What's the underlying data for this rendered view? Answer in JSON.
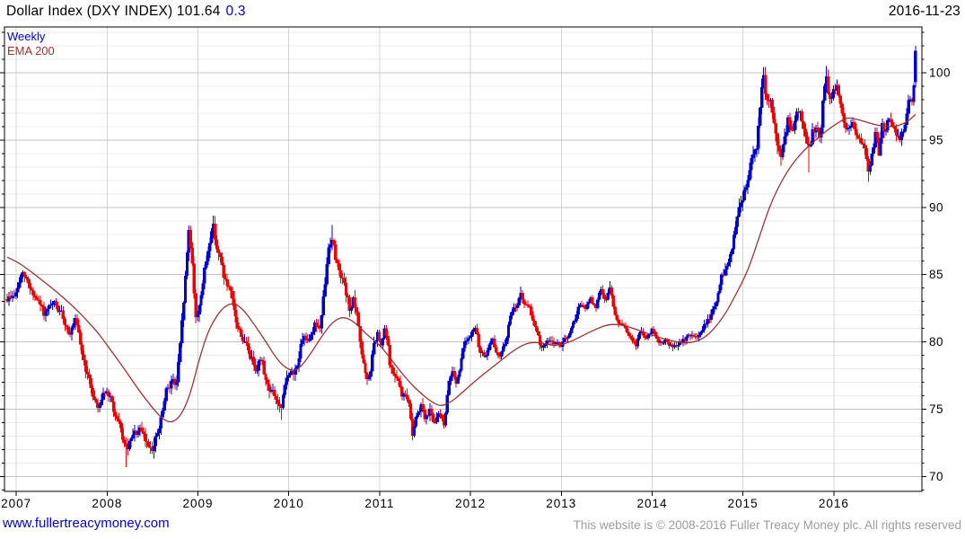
{
  "header": {
    "title_main": "Dollar Index (DXY INDEX) 101.64",
    "title_change": "0.3",
    "date": "2016-11-23"
  },
  "legend": {
    "interval_label": "Weekly",
    "overlay_label": "EMA 200"
  },
  "footer": {
    "site_link": "www.fullertreacymoney.com",
    "copyright": "This website is © 2008-2016 Fuller Treacy Money plc. All rights reserved"
  },
  "chart_data": {
    "type": "candlestick",
    "title": "Dollar Index (DXY INDEX)",
    "interval": "Weekly",
    "overlay": "EMA 200",
    "last_price": 101.64,
    "change": 0.3,
    "last_date": "2016-11-23",
    "x_ticks": [
      2007,
      2008,
      2009,
      2010,
      2011,
      2012,
      2013,
      2014,
      2015,
      2016
    ],
    "y_ticks": [
      70,
      75,
      80,
      85,
      90,
      95,
      100
    ],
    "y_minor_step": 1,
    "xlim": [
      2006.87,
      2016.97
    ],
    "ylim": [
      68.9,
      103.4
    ],
    "grid": true,
    "legend_position": "top-left",
    "colors": {
      "up": "#0000CC",
      "down": "#EE0000",
      "ema": "#993333",
      "grid_minor": "#EDEDED",
      "grid_major": "#C3C3C3",
      "grid_year": "#D6D6D6",
      "axis": "#000000",
      "tick_text": "#000000"
    },
    "close_path": [
      [
        2006.9,
        83.2
      ],
      [
        2007.0,
        83.6
      ],
      [
        2007.06,
        85.0
      ],
      [
        2007.12,
        84.4
      ],
      [
        2007.21,
        83.3
      ],
      [
        2007.31,
        81.9
      ],
      [
        2007.42,
        82.6
      ],
      [
        2007.5,
        81.9
      ],
      [
        2007.58,
        80.8
      ],
      [
        2007.65,
        81.4
      ],
      [
        2007.74,
        78.6
      ],
      [
        2007.83,
        76.3
      ],
      [
        2007.9,
        75.2
      ],
      [
        2007.97,
        76.6
      ],
      [
        2008.05,
        75.4
      ],
      [
        2008.13,
        73.6
      ],
      [
        2008.21,
        71.8
      ],
      [
        2008.28,
        72.7
      ],
      [
        2008.35,
        73.3
      ],
      [
        2008.44,
        72.3
      ],
      [
        2008.52,
        72.5
      ],
      [
        2008.58,
        73.6
      ],
      [
        2008.65,
        76.0
      ],
      [
        2008.71,
        77.3
      ],
      [
        2008.76,
        76.6
      ],
      [
        2008.81,
        79.8
      ],
      [
        2008.86,
        84.5
      ],
      [
        2008.9,
        88.2
      ],
      [
        2008.94,
        86.0
      ],
      [
        2008.98,
        81.4
      ],
      [
        2009.04,
        84.0
      ],
      [
        2009.1,
        86.2
      ],
      [
        2009.16,
        89.0
      ],
      [
        2009.21,
        87.1
      ],
      [
        2009.29,
        84.8
      ],
      [
        2009.36,
        83.3
      ],
      [
        2009.42,
        81.2
      ],
      [
        2009.5,
        80.2
      ],
      [
        2009.57,
        79.0
      ],
      [
        2009.63,
        78.3
      ],
      [
        2009.69,
        78.9
      ],
      [
        2009.76,
        76.9
      ],
      [
        2009.84,
        76.0
      ],
      [
        2009.92,
        74.8
      ],
      [
        2009.99,
        77.8
      ],
      [
        2010.06,
        77.4
      ],
      [
        2010.13,
        79.6
      ],
      [
        2010.21,
        80.3
      ],
      [
        2010.29,
        81.5
      ],
      [
        2010.35,
        80.9
      ],
      [
        2010.4,
        84.2
      ],
      [
        2010.44,
        87.0
      ],
      [
        2010.48,
        88.0
      ],
      [
        2010.52,
        86.0
      ],
      [
        2010.58,
        85.2
      ],
      [
        2010.63,
        83.4
      ],
      [
        2010.67,
        82.4
      ],
      [
        2010.71,
        83.1
      ],
      [
        2010.76,
        81.3
      ],
      [
        2010.81,
        78.9
      ],
      [
        2010.86,
        76.8
      ],
      [
        2010.89,
        77.3
      ],
      [
        2010.93,
        79.5
      ],
      [
        2010.98,
        80.4
      ],
      [
        2011.02,
        79.3
      ],
      [
        2011.06,
        81.0
      ],
      [
        2011.12,
        78.0
      ],
      [
        2011.18,
        77.3
      ],
      [
        2011.25,
        76.0
      ],
      [
        2011.31,
        75.9
      ],
      [
        2011.36,
        73.2
      ],
      [
        2011.41,
        74.9
      ],
      [
        2011.46,
        75.6
      ],
      [
        2011.51,
        74.4
      ],
      [
        2011.56,
        75.3
      ],
      [
        2011.61,
        73.9
      ],
      [
        2011.66,
        74.6
      ],
      [
        2011.71,
        74.0
      ],
      [
        2011.76,
        76.7
      ],
      [
        2011.81,
        78.2
      ],
      [
        2011.84,
        77.1
      ],
      [
        2011.89,
        78.4
      ],
      [
        2011.94,
        80.3
      ],
      [
        2012.0,
        80.2
      ],
      [
        2012.05,
        81.1
      ],
      [
        2012.1,
        79.4
      ],
      [
        2012.17,
        78.9
      ],
      [
        2012.24,
        80.0
      ],
      [
        2012.31,
        78.8
      ],
      [
        2012.37,
        79.6
      ],
      [
        2012.44,
        81.9
      ],
      [
        2012.5,
        82.6
      ],
      [
        2012.55,
        83.6
      ],
      [
        2012.6,
        82.6
      ],
      [
        2012.66,
        82.2
      ],
      [
        2012.72,
        81.0
      ],
      [
        2012.78,
        79.5
      ],
      [
        2012.84,
        79.9
      ],
      [
        2012.89,
        80.3
      ],
      [
        2012.95,
        79.7
      ],
      [
        2013.02,
        79.9
      ],
      [
        2013.08,
        80.3
      ],
      [
        2013.14,
        81.3
      ],
      [
        2013.2,
        82.8
      ],
      [
        2013.26,
        82.3
      ],
      [
        2013.32,
        83.2
      ],
      [
        2013.38,
        82.4
      ],
      [
        2013.44,
        84.0
      ],
      [
        2013.49,
        83.1
      ],
      [
        2013.53,
        84.2
      ],
      [
        2013.58,
        82.5
      ],
      [
        2013.63,
        81.3
      ],
      [
        2013.7,
        81.1
      ],
      [
        2013.76,
        80.2
      ],
      [
        2013.82,
        79.7
      ],
      [
        2013.87,
        80.8
      ],
      [
        2013.93,
        80.3
      ],
      [
        2014.0,
        80.9
      ],
      [
        2014.08,
        80.1
      ],
      [
        2014.16,
        80.1
      ],
      [
        2014.24,
        79.6
      ],
      [
        2014.32,
        79.9
      ],
      [
        2014.4,
        80.4
      ],
      [
        2014.48,
        80.2
      ],
      [
        2014.55,
        81.1
      ],
      [
        2014.63,
        81.7
      ],
      [
        2014.7,
        82.9
      ],
      [
        2014.77,
        84.8
      ],
      [
        2014.83,
        85.5
      ],
      [
        2014.89,
        87.6
      ],
      [
        2014.95,
        89.3
      ],
      [
        2015.0,
        90.8
      ],
      [
        2015.05,
        92.3
      ],
      [
        2015.1,
        94.3
      ],
      [
        2015.15,
        95.1
      ],
      [
        2015.19,
        97.8
      ],
      [
        2015.22,
        99.9
      ],
      [
        2015.26,
        97.9
      ],
      [
        2015.3,
        98.4
      ],
      [
        2015.34,
        96.8
      ],
      [
        2015.38,
        94.7
      ],
      [
        2015.42,
        93.4
      ],
      [
        2015.46,
        95.4
      ],
      [
        2015.5,
        96.8
      ],
      [
        2015.54,
        95.2
      ],
      [
        2015.58,
        97.1
      ],
      [
        2015.63,
        97.4
      ],
      [
        2015.68,
        96.1
      ],
      [
        2015.73,
        94.2
      ],
      [
        2015.77,
        96.0
      ],
      [
        2015.81,
        95.7
      ],
      [
        2015.85,
        95.0
      ],
      [
        2015.89,
        98.5
      ],
      [
        2015.92,
        99.8
      ],
      [
        2015.95,
        97.9
      ],
      [
        2015.99,
        98.7
      ],
      [
        2016.04,
        99.0
      ],
      [
        2016.09,
        97.0
      ],
      [
        2016.13,
        96.0
      ],
      [
        2016.18,
        96.6
      ],
      [
        2016.23,
        95.9
      ],
      [
        2016.28,
        94.7
      ],
      [
        2016.33,
        94.8
      ],
      [
        2016.38,
        92.8
      ],
      [
        2016.42,
        94.0
      ],
      [
        2016.46,
        95.4
      ],
      [
        2016.5,
        93.8
      ],
      [
        2016.53,
        96.0
      ],
      [
        2016.57,
        95.7
      ],
      [
        2016.61,
        96.5
      ],
      [
        2016.66,
        95.6
      ],
      [
        2016.71,
        95.0
      ],
      [
        2016.76,
        95.6
      ],
      [
        2016.8,
        96.8
      ],
      [
        2016.83,
        98.2
      ],
      [
        2016.86,
        97.5
      ],
      [
        2016.88,
        99.2
      ],
      [
        2016.9,
        101.64
      ]
    ],
    "vol_profile": [
      [
        2006.9,
        0.45
      ],
      [
        2008.0,
        0.5
      ],
      [
        2008.7,
        0.65
      ],
      [
        2009.5,
        0.55
      ],
      [
        2010.5,
        0.55
      ],
      [
        2011.5,
        0.5
      ],
      [
        2012.0,
        0.35
      ],
      [
        2013.0,
        0.35
      ],
      [
        2014.0,
        0.25
      ],
      [
        2014.6,
        0.35
      ],
      [
        2015.0,
        0.7
      ],
      [
        2015.6,
        0.6
      ],
      [
        2016.0,
        0.55
      ],
      [
        2016.9,
        0.55
      ]
    ],
    "spikes": [
      [
        2008.21,
        "lo",
        70.7
      ],
      [
        2008.9,
        "hi",
        88.5
      ],
      [
        2009.16,
        "hi",
        89.4
      ],
      [
        2009.92,
        "lo",
        74.2
      ],
      [
        2010.48,
        "hi",
        88.7
      ],
      [
        2011.36,
        "lo",
        72.7
      ],
      [
        2012.55,
        "hi",
        84.1
      ],
      [
        2013.53,
        "hi",
        84.5
      ],
      [
        2015.22,
        "hi",
        100.4
      ],
      [
        2015.73,
        "lo",
        92.6
      ],
      [
        2015.92,
        "hi",
        100.5
      ],
      [
        2016.38,
        "lo",
        91.9
      ],
      [
        2016.9,
        "hi",
        102.0
      ]
    ],
    "last_week": {
      "open": 99.3,
      "close": 101.64,
      "high": 102.0,
      "low": 98.9
    },
    "ema_path": [
      [
        2006.9,
        86.3
      ],
      [
        2007.0,
        86.0
      ],
      [
        2007.15,
        85.3
      ],
      [
        2007.3,
        84.5
      ],
      [
        2007.45,
        83.7
      ],
      [
        2007.6,
        82.8
      ],
      [
        2007.75,
        81.8
      ],
      [
        2007.9,
        80.7
      ],
      [
        2008.05,
        79.3
      ],
      [
        2008.2,
        77.9
      ],
      [
        2008.35,
        76.4
      ],
      [
        2008.5,
        75.1
      ],
      [
        2008.62,
        74.2
      ],
      [
        2008.72,
        74.0
      ],
      [
        2008.82,
        74.6
      ],
      [
        2008.92,
        76.2
      ],
      [
        2009.0,
        78.4
      ],
      [
        2009.1,
        80.6
      ],
      [
        2009.2,
        81.9
      ],
      [
        2009.3,
        82.7
      ],
      [
        2009.4,
        82.9
      ],
      [
        2009.5,
        82.4
      ],
      [
        2009.62,
        81.3
      ],
      [
        2009.75,
        80.0
      ],
      [
        2009.88,
        78.6
      ],
      [
        2010.0,
        77.9
      ],
      [
        2010.1,
        77.9
      ],
      [
        2010.22,
        78.9
      ],
      [
        2010.35,
        80.3
      ],
      [
        2010.48,
        81.5
      ],
      [
        2010.6,
        81.9
      ],
      [
        2010.72,
        81.5
      ],
      [
        2010.85,
        80.6
      ],
      [
        2011.0,
        79.8
      ],
      [
        2011.15,
        78.5
      ],
      [
        2011.3,
        77.2
      ],
      [
        2011.45,
        76.2
      ],
      [
        2011.58,
        75.5
      ],
      [
        2011.68,
        75.2
      ],
      [
        2011.8,
        75.6
      ],
      [
        2011.92,
        76.3
      ],
      [
        2012.05,
        77.1
      ],
      [
        2012.2,
        77.9
      ],
      [
        2012.35,
        78.7
      ],
      [
        2012.5,
        79.5
      ],
      [
        2012.65,
        80.0
      ],
      [
        2012.8,
        79.9
      ],
      [
        2012.95,
        79.7
      ],
      [
        2013.1,
        80.0
      ],
      [
        2013.3,
        80.7
      ],
      [
        2013.5,
        81.3
      ],
      [
        2013.65,
        81.3
      ],
      [
        2013.8,
        81.0
      ],
      [
        2014.0,
        80.5
      ],
      [
        2014.2,
        80.1
      ],
      [
        2014.38,
        79.9
      ],
      [
        2014.52,
        80.1
      ],
      [
        2014.65,
        80.7
      ],
      [
        2014.8,
        82.0
      ],
      [
        2014.92,
        83.5
      ],
      [
        2015.05,
        85.2
      ],
      [
        2015.18,
        87.8
      ],
      [
        2015.3,
        90.2
      ],
      [
        2015.42,
        91.9
      ],
      [
        2015.55,
        93.3
      ],
      [
        2015.68,
        94.3
      ],
      [
        2015.8,
        95.0
      ],
      [
        2015.92,
        95.7
      ],
      [
        2016.05,
        96.3
      ],
      [
        2016.15,
        96.7
      ],
      [
        2016.28,
        96.5
      ],
      [
        2016.42,
        96.2
      ],
      [
        2016.55,
        96.0
      ],
      [
        2016.68,
        96.0
      ],
      [
        2016.8,
        96.3
      ],
      [
        2016.9,
        96.9
      ]
    ]
  }
}
